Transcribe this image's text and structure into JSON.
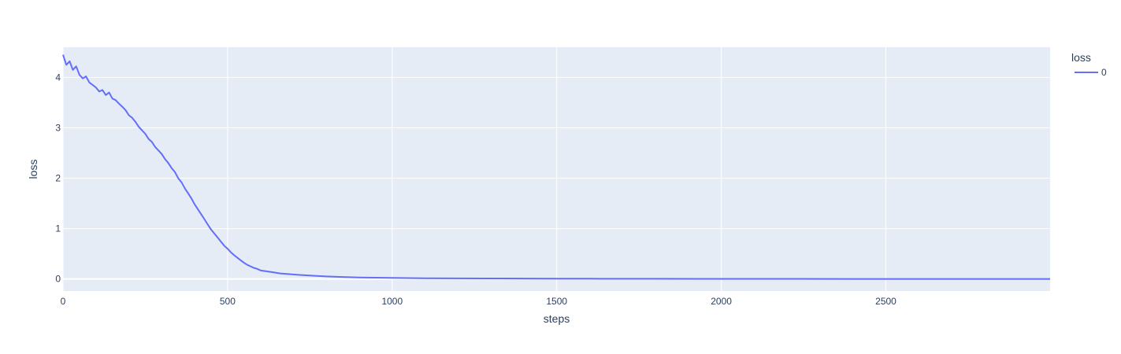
{
  "chart_data": {
    "type": "line",
    "title": "",
    "xlabel": "steps",
    "ylabel": "loss",
    "xlim": [
      0,
      2999
    ],
    "ylim": [
      -0.24,
      4.6
    ],
    "x_ticks": [
      0,
      500,
      1000,
      1500,
      2000,
      2500
    ],
    "y_ticks": [
      0,
      1,
      2,
      3,
      4
    ],
    "grid": true,
    "legend": {
      "title": "loss",
      "position": "top-right",
      "entries": [
        "0"
      ]
    },
    "colors": {
      "plot_bg": "#e5ecf6",
      "grid": "#ffffff",
      "line": "#636efa",
      "text": "#2a3f5f"
    },
    "series": [
      {
        "name": "0",
        "x": [
          0,
          10,
          20,
          30,
          40,
          50,
          60,
          70,
          80,
          90,
          100,
          110,
          120,
          130,
          140,
          150,
          160,
          170,
          180,
          190,
          200,
          210,
          220,
          230,
          240,
          250,
          260,
          270,
          280,
          290,
          300,
          310,
          320,
          330,
          340,
          350,
          360,
          370,
          380,
          390,
          400,
          410,
          420,
          430,
          440,
          450,
          460,
          470,
          480,
          490,
          500,
          510,
          520,
          530,
          540,
          550,
          560,
          570,
          580,
          590,
          600,
          620,
          640,
          660,
          680,
          700,
          730,
          760,
          800,
          850,
          900,
          950,
          1000,
          1100,
          1200,
          1300,
          1400,
          1500,
          1600,
          1700,
          1800,
          2000,
          2200,
          2400,
          2600,
          2800,
          2999
        ],
        "values": [
          4.45,
          4.25,
          4.32,
          4.15,
          4.22,
          4.05,
          3.98,
          4.02,
          3.9,
          3.85,
          3.8,
          3.72,
          3.75,
          3.65,
          3.7,
          3.58,
          3.55,
          3.48,
          3.42,
          3.35,
          3.25,
          3.2,
          3.12,
          3.02,
          2.95,
          2.88,
          2.78,
          2.72,
          2.62,
          2.55,
          2.48,
          2.38,
          2.3,
          2.2,
          2.12,
          2.0,
          1.92,
          1.8,
          1.7,
          1.6,
          1.48,
          1.38,
          1.28,
          1.18,
          1.08,
          0.98,
          0.9,
          0.82,
          0.74,
          0.66,
          0.6,
          0.53,
          0.47,
          0.42,
          0.37,
          0.32,
          0.28,
          0.25,
          0.22,
          0.2,
          0.17,
          0.15,
          0.13,
          0.11,
          0.1,
          0.09,
          0.075,
          0.065,
          0.05,
          0.04,
          0.03,
          0.025,
          0.02,
          0.015,
          0.012,
          0.01,
          0.008,
          0.006,
          0.005,
          0.004,
          0.003,
          0.002,
          0.0015,
          0.001,
          0.001,
          0.001,
          0.001
        ]
      }
    ]
  }
}
